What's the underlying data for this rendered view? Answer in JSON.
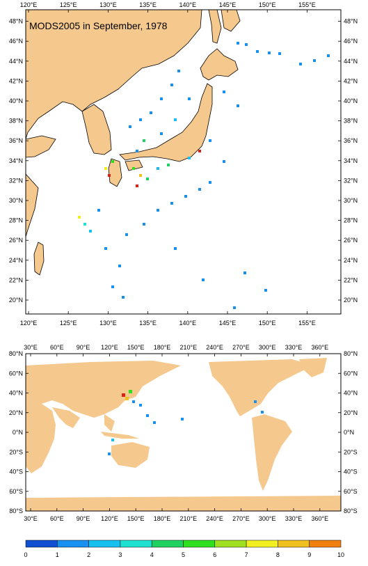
{
  "top_map": {
    "title": "MODS2005 in September, 1978",
    "lon_labels": [
      "120°E",
      "125°E",
      "130°E",
      "135°E",
      "140°E",
      "145°E",
      "150°E",
      "155°E"
    ],
    "lat_labels": [
      "20°N",
      "22°N",
      "24°N",
      "26°N",
      "28°N",
      "30°N",
      "32°N",
      "34°N",
      "36°N",
      "38°N",
      "40°N",
      "42°N",
      "44°N",
      "46°N",
      "48°N"
    ]
  },
  "bottom_map": {
    "lon_labels": [
      "30°E",
      "60°E",
      "90°E",
      "120°E",
      "150°E",
      "180°E",
      "210°E",
      "240°E",
      "270°E",
      "300°E",
      "330°E",
      "360°E"
    ],
    "lat_labels": [
      "80°S",
      "60°S",
      "40°S",
      "20°S",
      "0°N",
      "20°N",
      "40°N",
      "60°N",
      "80°N"
    ]
  },
  "colorbar": {
    "labels": [
      "0",
      "1",
      "2",
      "3",
      "4",
      "5",
      "6",
      "7",
      "8",
      "9",
      "10"
    ],
    "colors": [
      "#1050d0",
      "#1890f0",
      "#18c0f0",
      "#20e0d0",
      "#20d060",
      "#30e020",
      "#a0e020",
      "#f0f020",
      "#f0c020",
      "#f08010"
    ]
  },
  "colors": {
    "land": "#f5c88e",
    "coast": "#000000"
  }
}
